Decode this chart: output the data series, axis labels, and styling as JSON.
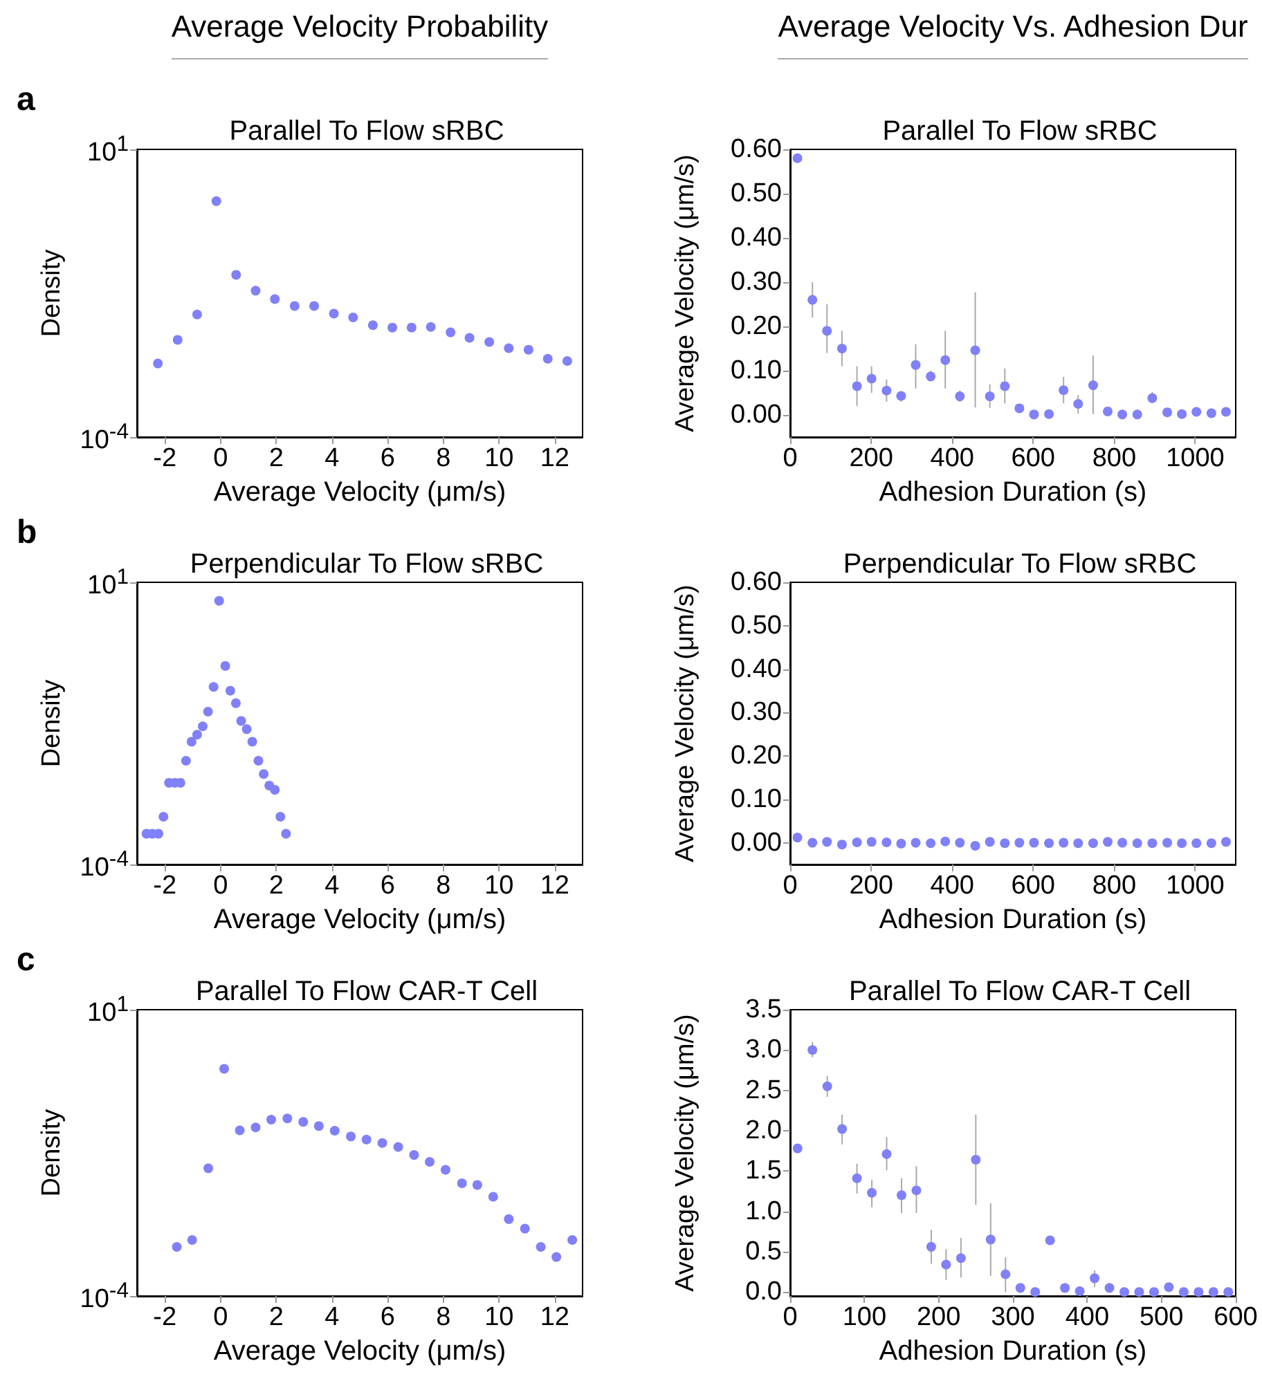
{
  "chart_data": [
    {
      "type": "scatter",
      "title": "Parallel To Flow sRBC",
      "xlabel": "Average Velocity (μm/s)",
      "ylabel": "Density",
      "log": "y",
      "marker": "circle",
      "color": "#8080f8",
      "annotations": [
        "Average Velocity Probability",
        "a"
      ],
      "x": [
        -2.25,
        -1.54,
        -0.84,
        -0.15,
        0.56,
        1.26,
        1.95,
        2.66,
        3.36,
        4.07,
        4.76,
        5.47,
        6.17,
        6.86,
        7.55,
        8.26,
        8.94,
        9.65,
        10.35,
        11.06,
        11.75,
        12.45
      ],
      "values": [
        0.0019,
        0.0049,
        0.0135,
        1.26,
        0.066,
        0.035,
        0.025,
        0.019,
        0.019,
        0.014,
        0.012,
        0.0088,
        0.008,
        0.008,
        0.0082,
        0.0066,
        0.0053,
        0.0045,
        0.0035,
        0.0033,
        0.0023,
        0.0021
      ],
      "xlim": [
        -3,
        13
      ],
      "xticks": [
        -2,
        0,
        2,
        4,
        6,
        8,
        10,
        12
      ],
      "ylim": [
        0.0001,
        10
      ],
      "yticks": [
        {
          "value": 0.0001,
          "label": "10$^{-4}$"
        },
        {
          "value": 10,
          "label": "10$^{1}$"
        }
      ]
    },
    {
      "type": "scatter",
      "title": "Parallel To Flow sRBC",
      "xlabel": "Adhesion Duration (s)",
      "ylabel": "Average Velocity (μm/s)",
      "marker": "circle",
      "color": "#8080f8",
      "annotations": [
        "Average Velocity Vs. Adhesion Dur"
      ],
      "x": [
        18,
        55,
        91,
        128,
        165,
        201,
        238,
        274,
        310,
        347,
        383,
        419,
        457,
        493,
        530,
        566,
        602,
        639,
        675,
        711,
        748,
        784,
        820,
        857,
        894,
        931,
        967,
        1003,
        1040,
        1076
      ],
      "values": [
        0.58,
        0.26,
        0.19,
        0.15,
        0.065,
        0.082,
        0.055,
        0.043,
        0.113,
        0.087,
        0.124,
        0.042,
        0.146,
        0.042,
        0.065,
        0.015,
        0.001,
        0.002,
        0.056,
        0.025,
        0.067,
        0.008,
        0.001,
        0.001,
        0.038,
        0.006,
        0.002,
        0.007,
        0.004,
        0.007
      ],
      "errors": [
        null,
        [
          0.22,
          0.3
        ],
        [
          0.14,
          0.25
        ],
        [
          0.11,
          0.19
        ],
        [
          0.02,
          0.11
        ],
        [
          0.05,
          0.11
        ],
        [
          0.03,
          0.08
        ],
        [
          0.03,
          0.05
        ],
        [
          0.06,
          0.16
        ],
        [
          0.08,
          0.1
        ],
        [
          0.06,
          0.19
        ],
        [
          0.03,
          0.055
        ],
        [
          0.017,
          0.277
        ],
        [
          0.016,
          0.069
        ],
        [
          0.026,
          0.105
        ],
        null,
        null,
        null,
        [
          0.026,
          0.086
        ],
        [
          0.003,
          0.045
        ],
        [
          0.002,
          0.134
        ],
        null,
        null,
        null,
        [
          0.027,
          0.052
        ],
        null,
        null,
        null,
        null,
        null
      ],
      "xlim": [
        0,
        1100
      ],
      "xticks": [
        0,
        200,
        400,
        600,
        800,
        1000
      ],
      "ylim": [
        -0.05,
        0.6
      ],
      "yticks": [
        {
          "value": 0,
          "label": "0.00"
        },
        {
          "value": 0.1,
          "label": "0.10"
        },
        {
          "value": 0.2,
          "label": "0.20"
        },
        {
          "value": 0.3,
          "label": "0.30"
        },
        {
          "value": 0.4,
          "label": "0.40"
        },
        {
          "value": 0.5,
          "label": "0.50"
        },
        {
          "value": 0.6,
          "label": "0.60"
        }
      ]
    },
    {
      "type": "scatter",
      "title": "Perpendicular To Flow sRBC",
      "xlabel": "Average Velocity (μm/s)",
      "ylabel": "Density",
      "log": "y",
      "marker": "circle",
      "color": "#8080f8",
      "annotations": [
        "b"
      ],
      "x": [
        -2.66,
        -2.45,
        -2.23,
        -2.05,
        -1.85,
        -1.64,
        -1.44,
        -1.24,
        -1.04,
        -0.84,
        -0.64,
        -0.45,
        -0.25,
        -0.05,
        0.17,
        0.35,
        0.55,
        0.74,
        0.94,
        1.14,
        1.36,
        1.55,
        1.75,
        1.95,
        2.15,
        2.35
      ],
      "values": [
        0.00035,
        0.00035,
        0.00035,
        0.0007,
        0.0028,
        0.0028,
        0.0028,
        0.0069,
        0.015,
        0.02,
        0.028,
        0.051,
        0.14,
        4.7,
        0.33,
        0.12,
        0.072,
        0.035,
        0.025,
        0.015,
        0.0069,
        0.004,
        0.0025,
        0.0021,
        0.0007,
        0.00035
      ],
      "xlim": [
        -3,
        13
      ],
      "xticks": [
        -2,
        0,
        2,
        4,
        6,
        8,
        10,
        12
      ],
      "ylim": [
        0.0001,
        10
      ],
      "yticks": [
        {
          "value": 0.0001,
          "label": "10$^{-4}$"
        },
        {
          "value": 10,
          "label": "10$^{1}$"
        }
      ]
    },
    {
      "type": "scatter",
      "title": "Perpendicular To Flow sRBC",
      "xlabel": "Adhesion Duration (s)",
      "ylabel": "Average Velocity (μm/s)",
      "marker": "circle",
      "color": "#8080f8",
      "x": [
        18,
        55,
        91,
        128,
        165,
        201,
        238,
        274,
        310,
        347,
        383,
        419,
        457,
        493,
        530,
        566,
        602,
        639,
        675,
        711,
        748,
        784,
        820,
        857,
        894,
        931,
        967,
        1003,
        1040,
        1076
      ],
      "values": [
        0.012,
        0,
        0.002,
        -0.004,
        0.001,
        0.002,
        0.001,
        -0.002,
        0,
        -0.001,
        0.003,
        0,
        -0.007,
        0.002,
        -0.001,
        0,
        0,
        -0.001,
        0,
        -0.001,
        -0.001,
        0.002,
        0,
        -0.001,
        -0.001,
        0,
        -0.001,
        -0.001,
        -0.001,
        0.002
      ],
      "xlim": [
        0,
        1100
      ],
      "xticks": [
        0,
        200,
        400,
        600,
        800,
        1000
      ],
      "ylim": [
        -0.05,
        0.6
      ],
      "yticks": [
        {
          "value": 0,
          "label": "0.00"
        },
        {
          "value": 0.1,
          "label": "0.10"
        },
        {
          "value": 0.2,
          "label": "0.20"
        },
        {
          "value": 0.3,
          "label": "0.30"
        },
        {
          "value": 0.4,
          "label": "0.40"
        },
        {
          "value": 0.5,
          "label": "0.50"
        },
        {
          "value": 0.6,
          "label": "0.60"
        }
      ]
    },
    {
      "type": "scatter",
      "title": "Parallel To Flow CAR-T Cell",
      "xlabel": "Average Velocity (μm/s)",
      "ylabel": "Density",
      "log": "y",
      "marker": "circle",
      "color": "#8080f8",
      "annotations": [
        "c"
      ],
      "x": [
        -1.57,
        -1.02,
        -0.44,
        0.13,
        0.69,
        1.26,
        1.82,
        2.4,
        2.97,
        3.53,
        4.1,
        4.68,
        5.24,
        5.81,
        6.38,
        6.95,
        7.51,
        8.08,
        8.67,
        9.22,
        9.79,
        10.35,
        10.93,
        11.5,
        12.06,
        12.63
      ],
      "values": [
        0.00072,
        0.00095,
        0.017,
        0.93,
        0.078,
        0.088,
        0.12,
        0.126,
        0.11,
        0.093,
        0.077,
        0.061,
        0.054,
        0.047,
        0.04,
        0.029,
        0.022,
        0.016,
        0.0093,
        0.0087,
        0.0054,
        0.0022,
        0.0015,
        0.00072,
        0.00048,
        0.00095
      ],
      "xlim": [
        -3,
        13
      ],
      "xticks": [
        -2,
        0,
        2,
        4,
        6,
        8,
        10,
        12
      ],
      "ylim": [
        0.0001,
        10
      ],
      "yticks": [
        {
          "value": 0.0001,
          "label": "10$^{-4}$"
        },
        {
          "value": 10,
          "label": "10$^{1}$"
        }
      ]
    },
    {
      "type": "scatter",
      "title": "Parallel To Flow CAR-T Cell",
      "xlabel": "Adhesion Duration (s)",
      "ylabel": "Average Velocity (μm/s)",
      "marker": "circle",
      "color": "#8080f8",
      "x": [
        10,
        30,
        50,
        70,
        90,
        110,
        130,
        150,
        170,
        190,
        210,
        230,
        250,
        270,
        290,
        310,
        330,
        350,
        370,
        390,
        410,
        430,
        450,
        470,
        490,
        510,
        530,
        550,
        570,
        590
      ],
      "values": [
        1.78,
        3.0,
        2.55,
        2.02,
        1.41,
        1.23,
        1.71,
        1.2,
        1.26,
        0.56,
        0.34,
        0.42,
        1.64,
        0.65,
        0.22,
        0.05,
        0,
        0.64,
        0.05,
        0.01,
        0.17,
        0.05,
        0,
        0,
        0,
        0.06,
        0,
        0,
        0,
        0
      ],
      "errors": [
        null,
        [
          2.91,
          3.1
        ],
        [
          2.42,
          2.68
        ],
        [
          1.83,
          2.2
        ],
        [
          1.22,
          1.59
        ],
        [
          1.05,
          1.39
        ],
        [
          1.51,
          1.92
        ],
        [
          0.98,
          1.41
        ],
        [
          0.98,
          1.56
        ],
        [
          0.35,
          0.77
        ],
        [
          0.15,
          0.53
        ],
        [
          0.18,
          0.67
        ],
        [
          1.08,
          2.2
        ],
        [
          0.2,
          1.1
        ],
        [
          0,
          0.43
        ],
        null,
        null,
        null,
        null,
        null,
        [
          0.06,
          0.27
        ],
        null,
        null,
        null,
        null,
        null,
        null,
        null,
        null,
        null
      ],
      "xlim": [
        0,
        600
      ],
      "xticks": [
        0,
        100,
        200,
        300,
        400,
        500,
        600
      ],
      "ylim": [
        -0.05,
        3.5
      ],
      "yticks": [
        {
          "value": 0,
          "label": "0.0"
        },
        {
          "value": 0.5,
          "label": "0.5"
        },
        {
          "value": 1,
          "label": "1.0"
        },
        {
          "value": 1.5,
          "label": "1.5"
        },
        {
          "value": 2,
          "label": "2.0"
        },
        {
          "value": 2.5,
          "label": "2.5"
        },
        {
          "value": 3,
          "label": "3.0"
        },
        {
          "value": 3.5,
          "label": "3.5"
        }
      ]
    }
  ]
}
